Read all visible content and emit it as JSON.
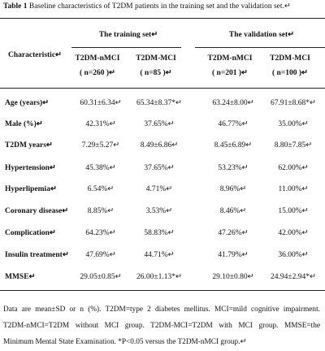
{
  "title": {
    "label": "Table 1",
    "text": " Baseline characteristics of T2DM patients in the training set and the validation set.↵"
  },
  "table": {
    "stub_header": "Characteristic↵",
    "group_headers": [
      "The training set↵",
      "The validation set↵"
    ],
    "column_headers": [
      [
        "T2DM-nMCI",
        "( n=260 )↵"
      ],
      [
        "T2DM-MCI",
        "( n=85 )↵"
      ],
      [
        "T2DM-nMCI",
        "( n=201 )↵"
      ],
      [
        "T2DM-MCI",
        "( n=100 )↵"
      ]
    ],
    "rows": [
      [
        "Age (years)↵",
        "60.31±6.34↵",
        "65.34±8.37*↵",
        "63.24±8.00↵",
        "67.91±8.68*↵"
      ],
      [
        "Male (%)↵",
        "42.31%↵",
        "37.65%↵",
        "46.77%↵",
        "35.00%↵"
      ],
      [
        "T2DM years↵",
        "7.29±5.27↵",
        "8.49±6.86↵",
        "8.45±6.89↵",
        "8.80±7.85↵"
      ],
      [
        "Hypertension↵",
        "45.38%↵",
        "37.65%↵",
        "53.23%↵",
        "62.00%↵"
      ],
      [
        "Hyperlipemia↵",
        "6.54%↵",
        "4.71%↵",
        "8.96%↵",
        "11.00%↵"
      ],
      [
        "Coronary disease↵",
        "8.85%↵",
        "3.53%↵",
        "8.46%↵",
        "15.00%↵"
      ],
      [
        "Complication↵",
        "64.23%↵",
        "58.83%↵",
        "47.26%↵",
        "42.00%↵"
      ],
      [
        "Insulin treatment↵",
        "47.69%↵",
        "44.71%↵",
        "41.79%↵",
        "36.00%↵"
      ],
      [
        "MMSE↵",
        "29.05±0.85↵",
        "26.00±1.13*↵",
        "29.10±0.80↵",
        "24.94±2.94*↵"
      ]
    ]
  },
  "footnote": [
    "Data are mean±SD or n (%). T2DM=type 2 diabetes mellitus. MCI=mild cognitive impairment.",
    "T2DM-nMCI=T2DM without MCI group. T2DM-MCI=T2DM with MCI group. MMSE=the",
    "Minimum Mental State Examination. *P<0.05 versus the T2DM-nMCI group.↵"
  ]
}
